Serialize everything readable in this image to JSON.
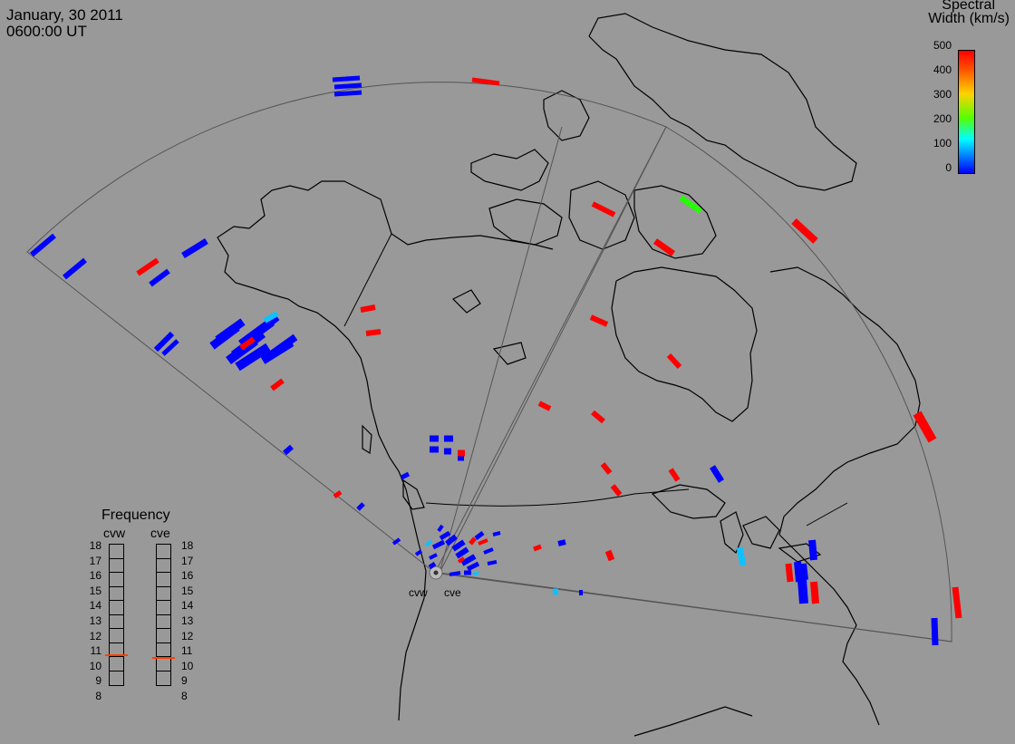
{
  "header": {
    "date": "January, 30 2011",
    "time": "0600:00 UT"
  },
  "colorbar": {
    "title_line1": "Spectral",
    "title_line2": "Width (km/s)",
    "ticks": [
      "500",
      "400",
      "300",
      "200",
      "100",
      "0"
    ],
    "min": 0,
    "max": 500,
    "colors": [
      "#0000ff",
      "#00bfff",
      "#00ffff",
      "#55ff00",
      "#ffd200",
      "#ff5000",
      "#ff0000"
    ]
  },
  "frequency_panel": {
    "title": "Frequency",
    "radars": [
      {
        "name": "cvw",
        "current_mhz": 10.8,
        "marker_color": "#ff4000"
      },
      {
        "name": "cve",
        "current_mhz": 10.6,
        "marker_color": "#ff4000"
      }
    ],
    "scale": [
      "18",
      "17",
      "16",
      "15",
      "14",
      "13",
      "12",
      "11",
      "10",
      "9",
      "8"
    ]
  },
  "radar_sites": {
    "labels": [
      "cvw",
      "cve"
    ]
  },
  "colors": {
    "background": "#999999",
    "coastline": "#000000",
    "fov_outline": "#444444",
    "low_width": "#0000ff",
    "high_width": "#ff0000",
    "mid_width": "#22ff00",
    "light_blue": "#11c0ff"
  }
}
